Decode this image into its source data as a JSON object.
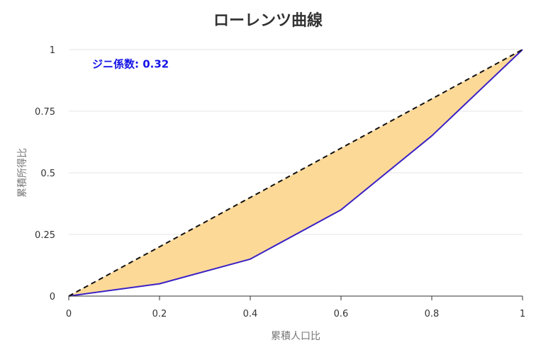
{
  "chart_data": {
    "type": "area",
    "title": "ローレンツ曲線",
    "xlabel": "累積人口比",
    "ylabel": "累積所得比",
    "xlim": [
      0,
      1
    ],
    "ylim": [
      0,
      1
    ],
    "x_ticks": [
      "0",
      "0.2",
      "0.4",
      "0.6",
      "0.8",
      "1"
    ],
    "y_ticks": [
      "0",
      "0.25",
      "0.5",
      "0.75",
      "1"
    ],
    "grid": "horizontal",
    "series": [
      {
        "x": [
          0,
          0.2,
          0.4,
          0.6,
          0.8,
          1
        ],
        "values": [
          0,
          0.05,
          0.15,
          0.35,
          0.65,
          1
        ],
        "color": "#3a22c4",
        "style": "solid"
      },
      {
        "x": [
          0,
          1
        ],
        "values": [
          0,
          1
        ],
        "color": "#111111",
        "style": "dashed"
      }
    ],
    "fill_between": {
      "color": "#fdd998"
    },
    "annotation": {
      "text": "ジニ係数: 0.32",
      "color": "#1414e6",
      "x": 0.05,
      "y": 0.97
    }
  }
}
